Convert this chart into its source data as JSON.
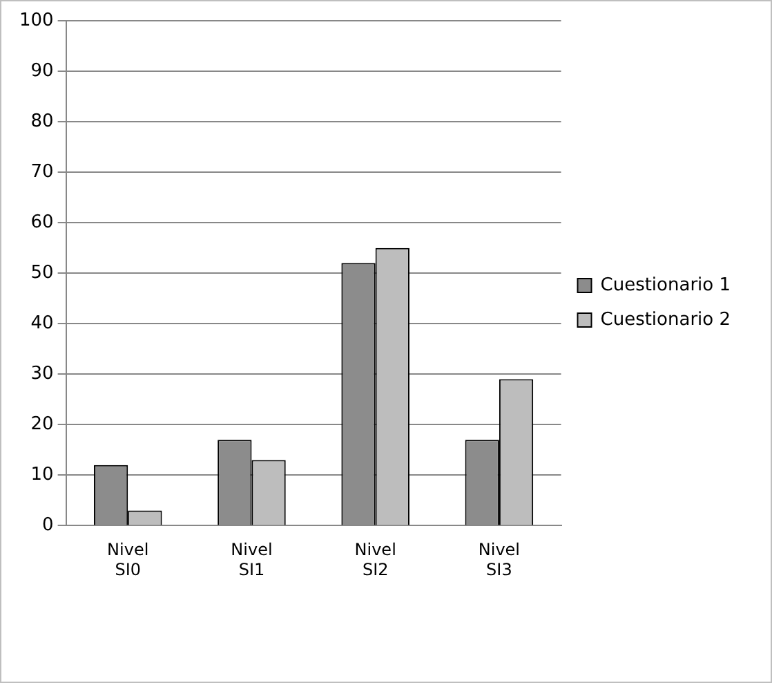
{
  "chart_data": {
    "type": "bar",
    "categories": [
      "Nivel SI0",
      "Nivel SI1",
      "Nivel SI2",
      "Nivel SI3"
    ],
    "series": [
      {
        "name": "Cuestionario 1",
        "color": "#8c8c8c",
        "values": [
          12,
          17,
          52,
          17
        ]
      },
      {
        "name": "Cuestionario 2",
        "color": "#bdbdbd",
        "values": [
          3,
          13,
          55,
          29
        ]
      }
    ],
    "ylim": [
      0,
      100
    ],
    "yticks": [
      0,
      10,
      20,
      30,
      40,
      50,
      60,
      70,
      80,
      90,
      100
    ],
    "grid": "y",
    "legend": "right"
  }
}
